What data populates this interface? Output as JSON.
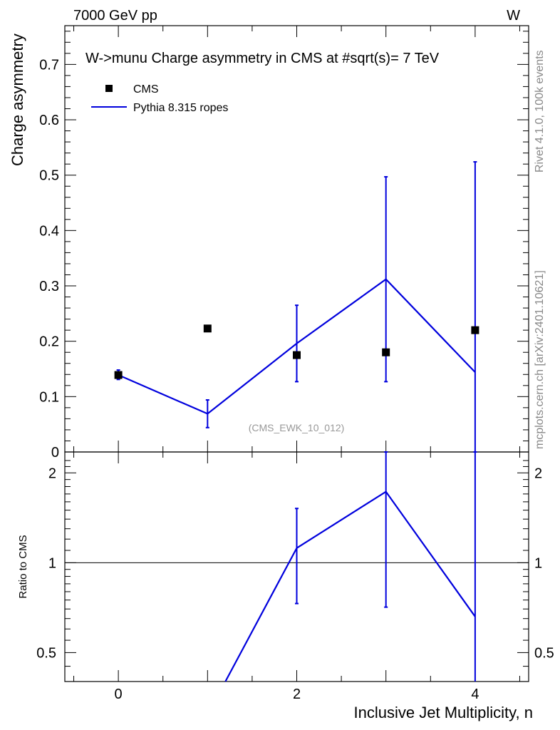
{
  "header": {
    "left": "7000 GeV pp",
    "right": "W"
  },
  "side_labels": {
    "rivet": "Rivet 4.1.0,  100k events",
    "mcplots": "mcplots.cern.ch [arXiv:2401.10621]"
  },
  "chart_data": [
    {
      "type": "scatter",
      "panel": "main",
      "title": "W->munu Charge asymmetry in CMS at #sqrt(s)= 7 TeV",
      "ylabel": "Charge asymmetry",
      "xlim": [
        -0.6,
        4.6
      ],
      "ylim": [
        0,
        0.77
      ],
      "yticks": [
        "0",
        "0.1",
        "0.2",
        "0.3",
        "0.4",
        "0.5",
        "0.6",
        "0.7"
      ],
      "annotation": "(CMS_EWK_10_012)",
      "legend": {
        "placement": "top-left"
      },
      "series": [
        {
          "name": "CMS",
          "kind": "points",
          "color": "#000000",
          "x": [
            0,
            1,
            2,
            3,
            4
          ],
          "y": [
            0.139,
            0.223,
            0.175,
            0.18,
            0.22
          ]
        },
        {
          "name": "Pythia 8.315 ropes",
          "kind": "line",
          "color": "#0000dd",
          "x": [
            0,
            1,
            2,
            3,
            4
          ],
          "y": [
            0.139,
            0.069,
            0.196,
            0.312,
            0.144
          ],
          "err_low": [
            0.131,
            0.044,
            0.127,
            0.127,
            0.0
          ],
          "err_high": [
            0.148,
            0.094,
            0.265,
            0.497,
            0.524
          ]
        }
      ]
    },
    {
      "type": "line",
      "panel": "ratio",
      "xlabel": "Inclusive Jet Multiplicity, n",
      "ylabel": "Ratio to CMS",
      "log_y": true,
      "ylim": [
        0.4,
        2.35
      ],
      "xticks": [
        "0",
        "2",
        "4"
      ],
      "yticks": [
        "0.5",
        "1",
        "2"
      ],
      "reference_line": 1,
      "series": [
        {
          "name": "Pythia 8.315 ropes",
          "color": "#0000dd",
          "x": [
            1.2,
            2,
            3,
            4
          ],
          "y": [
            0.4,
            1.12,
            1.73,
            0.66
          ],
          "err_low": [
            null,
            0.73,
            0.71,
            0.0
          ],
          "err_high": [
            null,
            1.52,
            2.35,
            2.35
          ]
        }
      ]
    }
  ]
}
